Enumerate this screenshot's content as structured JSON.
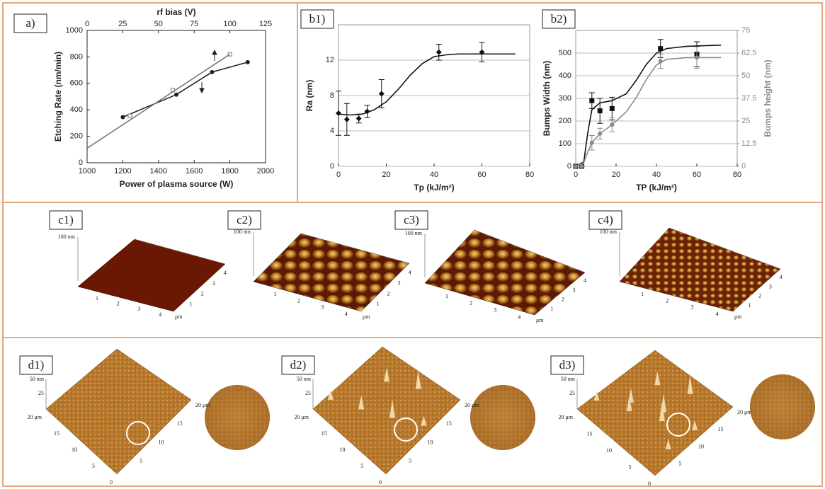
{
  "chart_data": [
    {
      "type": "scatter",
      "label": "a)",
      "xlabel": "Power of plasma source (W)",
      "x2label": "rf bias (V)",
      "ylabel": "Etching Rate (nm/min)",
      "xlim": [
        1000,
        2000
      ],
      "xticks": [
        1000,
        1200,
        1400,
        1600,
        1800,
        2000
      ],
      "x2lim": [
        0,
        125
      ],
      "x2ticks": [
        0,
        25,
        50,
        75,
        100,
        125
      ],
      "ylim": [
        0,
        1000
      ],
      "yticks": [
        0,
        200,
        400,
        600,
        800,
        1000
      ],
      "grid": false,
      "series": [
        {
          "color": "#222222",
          "marker": "circle",
          "line": true,
          "x": [
            1200,
            1500,
            1700,
            1900
          ],
          "values": [
            345,
            515,
            685,
            760
          ]
        },
        {
          "color": "#777777",
          "marker": "square-open",
          "xaxis": "x2",
          "x": [
            30,
            60,
            100
          ],
          "values": [
            355,
            550,
            820
          ]
        },
        {
          "color": "#777777",
          "marker": "none",
          "line": true,
          "xaxis": "x2",
          "x": [
            0,
            100
          ],
          "values": [
            110,
            820
          ]
        }
      ]
    },
    {
      "type": "scatter",
      "label": "b1)",
      "xlabel": "Tp (kJ/m²)",
      "ylabel": "Ra (nm)",
      "xlim": [
        0,
        80
      ],
      "xticks": [
        0,
        20,
        40,
        60,
        80
      ],
      "ylim": [
        0,
        16
      ],
      "yticks": [
        0,
        4,
        8,
        12
      ],
      "grid": true,
      "series": [
        {
          "color": "#111111",
          "marker": "diamond",
          "x": [
            0,
            3.5,
            8.5,
            12,
            18,
            42,
            60
          ],
          "values": [
            6.0,
            5.3,
            5.4,
            6.2,
            8.2,
            12.9,
            12.9
          ],
          "errors": [
            2.5,
            1.8,
            0.5,
            0.7,
            1.6,
            0.9,
            1.1
          ]
        },
        {
          "color": "#111111",
          "marker": "none",
          "line": true,
          "x": [
            0,
            5,
            10,
            15,
            20,
            25,
            30,
            35,
            40,
            45,
            50,
            60,
            74
          ],
          "values": [
            5.9,
            5.8,
            5.9,
            6.4,
            7.3,
            8.7,
            10.3,
            11.6,
            12.4,
            12.6,
            12.7,
            12.7,
            12.7
          ]
        }
      ]
    },
    {
      "type": "scatter",
      "label": "b2)",
      "xlabel": "TP (kJ/m²)",
      "ylabel": "Bumps Width (nm)",
      "y2label": "Bumps height (nm)",
      "y2color": "#8a8a8a",
      "xlim": [
        0,
        80
      ],
      "xticks": [
        0,
        20,
        40,
        60,
        80
      ],
      "ylim": [
        0,
        600
      ],
      "yticks": [
        0,
        100,
        200,
        300,
        400,
        500
      ],
      "y2lim": [
        0,
        75
      ],
      "y2ticks": [
        0,
        12.5,
        25,
        37.5,
        50,
        62.5,
        75
      ],
      "grid": true,
      "series": [
        {
          "color": "#111111",
          "marker": "square",
          "x": [
            0,
            3,
            8,
            12,
            18,
            42,
            60
          ],
          "values": [
            0,
            0,
            290,
            245,
            255,
            520,
            495
          ],
          "errors": [
            0,
            0,
            35,
            55,
            50,
            40,
            55
          ]
        },
        {
          "color": "#8a8a8a",
          "marker": "circle",
          "axis": "y2",
          "x": [
            0,
            3,
            8,
            12,
            18,
            42,
            60
          ],
          "values": [
            0,
            0,
            13,
            18,
            23,
            58,
            60
          ],
          "errors": [
            0,
            0,
            4,
            3,
            4,
            4,
            6
          ]
        },
        {
          "color": "#111111",
          "marker": "none",
          "line": true,
          "x": [
            0,
            4,
            6,
            8,
            12,
            18,
            25,
            30,
            35,
            40,
            45,
            55,
            72
          ],
          "values": [
            0,
            20,
            150,
            250,
            280,
            290,
            320,
            380,
            450,
            500,
            520,
            530,
            535
          ]
        },
        {
          "color": "#8a8a8a",
          "marker": "none",
          "line": true,
          "axis": "y2",
          "x": [
            0,
            4,
            6,
            8,
            12,
            18,
            25,
            30,
            35,
            40,
            45,
            55,
            72
          ],
          "values": [
            0,
            2,
            8,
            13,
            18,
            23,
            30,
            38,
            48,
            56,
            59,
            60,
            60
          ]
        }
      ]
    }
  ],
  "afm_c": [
    {
      "label": "c1)",
      "z_label": "100 nm",
      "x_ticks": [
        "1",
        "2",
        "3",
        "4"
      ],
      "unit": "μm"
    },
    {
      "label": "c2)",
      "z_label": "100 nm",
      "x_ticks": [
        "1",
        "2",
        "3",
        "4"
      ],
      "unit": "μm"
    },
    {
      "label": "c3)",
      "z_label": "100 nm",
      "x_ticks": [
        "1",
        "2",
        "3",
        "4"
      ],
      "unit": "μm"
    },
    {
      "label": "c4)",
      "z_label": "100 nm",
      "x_ticks": [
        "1",
        "2",
        "3",
        "4"
      ],
      "unit": "μm"
    }
  ],
  "afm_d": [
    {
      "label": "d1)",
      "z_label": "50 nm",
      "z_tick": "25",
      "left_ticks": [
        "20 μm",
        "15",
        "10",
        "5",
        "0"
      ],
      "right_ticks": [
        "5",
        "10",
        "15",
        "20 μm"
      ]
    },
    {
      "label": "d2)",
      "z_label": "50 nm",
      "z_tick": "25",
      "left_ticks": [
        "20 μm",
        "15",
        "10",
        "5",
        "0"
      ],
      "right_ticks": [
        "5",
        "10",
        "15",
        "20 μm"
      ]
    },
    {
      "label": "d3)",
      "z_label": "50 nm",
      "z_tick": "25",
      "left_ticks": [
        "20 μm",
        "15",
        "10",
        "5",
        "0"
      ],
      "right_ticks": [
        "5",
        "10",
        "15",
        "20 μm"
      ]
    }
  ]
}
